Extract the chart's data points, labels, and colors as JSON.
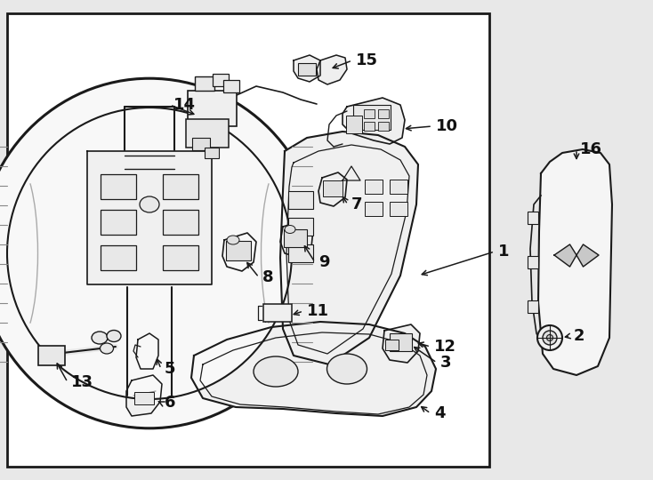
{
  "bg_color": "#e8e8e8",
  "box_facecolor": "#ffffff",
  "line_color": "#1a1a1a",
  "fig_width": 7.34,
  "fig_height": 5.4,
  "dpi": 100
}
